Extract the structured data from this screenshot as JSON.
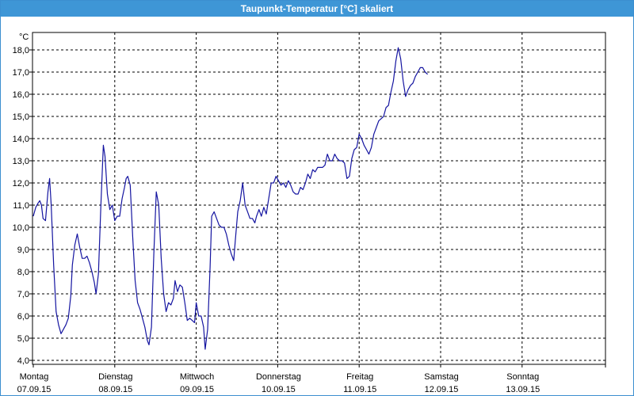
{
  "window": {
    "title": "Taupunkt-Temperatur [°C] skaliert"
  },
  "chart_data": {
    "type": "line",
    "title": "Taupunkt-Temperatur [°C] skaliert",
    "ylabel": "°C",
    "xlabel": "",
    "ylim": [
      3.9,
      18.6
    ],
    "xlim": [
      0,
      7
    ],
    "grid": true,
    "y_ticks": [
      "4,0",
      "5,0",
      "6,0",
      "7,0",
      "8,0",
      "9,0",
      "10,0",
      "11,0",
      "12,0",
      "13,0",
      "14,0",
      "15,0",
      "16,0",
      "17,0",
      "18,0"
    ],
    "y_tick_values": [
      4,
      5,
      6,
      7,
      8,
      9,
      10,
      11,
      12,
      13,
      14,
      15,
      16,
      17,
      18
    ],
    "x_ticks": [
      {
        "day": "Montag",
        "date": "07.09.15"
      },
      {
        "day": "Dienstag",
        "date": "08.09.15"
      },
      {
        "day": "Mittwoch",
        "date": "09.09.15"
      },
      {
        "day": "Donnerstag",
        "date": "10.09.15"
      },
      {
        "day": "Freitag",
        "date": "11.09.15"
      },
      {
        "day": "Samstag",
        "date": "12.09.15"
      },
      {
        "day": "Sonntag",
        "date": "13.09.15"
      }
    ],
    "colors": {
      "line": "#1414a0",
      "grid": "#000000",
      "title_bar": "#3e96d6"
    },
    "series": [
      {
        "points": [
          [
            0.0,
            10.5
          ],
          [
            0.03,
            10.9
          ],
          [
            0.06,
            11.1
          ],
          [
            0.08,
            11.2
          ],
          [
            0.1,
            11.0
          ],
          [
            0.12,
            10.4
          ],
          [
            0.15,
            10.3
          ],
          [
            0.18,
            11.6
          ],
          [
            0.2,
            12.2
          ],
          [
            0.22,
            11.0
          ],
          [
            0.25,
            8.3
          ],
          [
            0.28,
            6.2
          ],
          [
            0.31,
            5.6
          ],
          [
            0.34,
            5.2
          ],
          [
            0.37,
            5.4
          ],
          [
            0.4,
            5.6
          ],
          [
            0.43,
            5.9
          ],
          [
            0.46,
            6.9
          ],
          [
            0.48,
            8.3
          ],
          [
            0.51,
            9.2
          ],
          [
            0.54,
            9.7
          ],
          [
            0.57,
            9.1
          ],
          [
            0.6,
            8.6
          ],
          [
            0.63,
            8.6
          ],
          [
            0.66,
            8.7
          ],
          [
            0.69,
            8.4
          ],
          [
            0.72,
            8.0
          ],
          [
            0.75,
            7.5
          ],
          [
            0.77,
            7.0
          ],
          [
            0.8,
            7.9
          ],
          [
            0.83,
            11.0
          ],
          [
            0.86,
            13.7
          ],
          [
            0.88,
            13.2
          ],
          [
            0.91,
            11.5
          ],
          [
            0.94,
            10.8
          ],
          [
            0.97,
            11.0
          ],
          [
            1.0,
            10.3
          ],
          [
            1.03,
            10.5
          ],
          [
            1.06,
            10.5
          ],
          [
            1.09,
            11.3
          ],
          [
            1.12,
            11.8
          ],
          [
            1.14,
            12.2
          ],
          [
            1.16,
            12.3
          ],
          [
            1.19,
            11.9
          ],
          [
            1.22,
            9.6
          ],
          [
            1.25,
            7.6
          ],
          [
            1.28,
            6.6
          ],
          [
            1.31,
            6.3
          ],
          [
            1.34,
            5.9
          ],
          [
            1.37,
            5.5
          ],
          [
            1.4,
            4.9
          ],
          [
            1.42,
            4.7
          ],
          [
            1.45,
            5.5
          ],
          [
            1.48,
            8.8
          ],
          [
            1.51,
            11.6
          ],
          [
            1.54,
            11.0
          ],
          [
            1.57,
            8.6
          ],
          [
            1.6,
            7.0
          ],
          [
            1.63,
            6.2
          ],
          [
            1.66,
            6.6
          ],
          [
            1.69,
            6.5
          ],
          [
            1.72,
            6.8
          ],
          [
            1.74,
            7.6
          ],
          [
            1.77,
            7.1
          ],
          [
            1.8,
            7.4
          ],
          [
            1.83,
            7.3
          ],
          [
            1.86,
            6.6
          ],
          [
            1.89,
            5.8
          ],
          [
            1.92,
            5.9
          ],
          [
            1.95,
            5.8
          ],
          [
            1.98,
            5.7
          ],
          [
            2.0,
            6.6
          ],
          [
            2.03,
            6.0
          ],
          [
            2.06,
            6.0
          ],
          [
            2.09,
            5.5
          ],
          [
            2.11,
            4.5
          ],
          [
            2.14,
            5.4
          ],
          [
            2.17,
            8.2
          ],
          [
            2.19,
            10.5
          ],
          [
            2.22,
            10.7
          ],
          [
            2.25,
            10.4
          ],
          [
            2.28,
            10.1
          ],
          [
            2.31,
            10.0
          ],
          [
            2.34,
            10.0
          ],
          [
            2.37,
            9.7
          ],
          [
            2.4,
            9.2
          ],
          [
            2.43,
            8.8
          ],
          [
            2.46,
            8.5
          ],
          [
            2.48,
            9.4
          ],
          [
            2.51,
            10.7
          ],
          [
            2.54,
            11.2
          ],
          [
            2.57,
            12.0
          ],
          [
            2.6,
            11.0
          ],
          [
            2.63,
            10.7
          ],
          [
            2.66,
            10.4
          ],
          [
            2.69,
            10.4
          ],
          [
            2.72,
            10.2
          ],
          [
            2.74,
            10.5
          ],
          [
            2.77,
            10.8
          ],
          [
            2.8,
            10.5
          ],
          [
            2.83,
            10.9
          ],
          [
            2.86,
            10.6
          ],
          [
            2.89,
            11.3
          ],
          [
            2.92,
            12.0
          ],
          [
            2.95,
            12.0
          ],
          [
            2.98,
            12.3
          ],
          [
            3.01,
            12.1
          ],
          [
            3.04,
            11.9
          ],
          [
            3.07,
            12.0
          ],
          [
            3.1,
            11.8
          ],
          [
            3.13,
            12.1
          ],
          [
            3.16,
            11.9
          ],
          [
            3.19,
            11.6
          ],
          [
            3.22,
            11.5
          ],
          [
            3.25,
            11.5
          ],
          [
            3.28,
            11.8
          ],
          [
            3.31,
            11.7
          ],
          [
            3.34,
            12.0
          ],
          [
            3.37,
            12.4
          ],
          [
            3.4,
            12.2
          ],
          [
            3.43,
            12.6
          ],
          [
            3.46,
            12.5
          ],
          [
            3.49,
            12.7
          ],
          [
            3.52,
            12.7
          ],
          [
            3.55,
            12.7
          ],
          [
            3.58,
            12.8
          ],
          [
            3.61,
            13.3
          ],
          [
            3.64,
            13.0
          ],
          [
            3.67,
            13.0
          ],
          [
            3.7,
            13.3
          ],
          [
            3.73,
            13.1
          ],
          [
            3.76,
            13.0
          ],
          [
            3.79,
            13.0
          ],
          [
            3.82,
            12.9
          ],
          [
            3.85,
            12.2
          ],
          [
            3.88,
            12.3
          ],
          [
            3.91,
            13.1
          ],
          [
            3.94,
            13.5
          ],
          [
            3.97,
            13.6
          ],
          [
            4.0,
            14.2
          ],
          [
            4.03,
            14.0
          ],
          [
            4.06,
            13.7
          ],
          [
            4.09,
            13.5
          ],
          [
            4.12,
            13.3
          ],
          [
            4.15,
            13.6
          ],
          [
            4.18,
            14.2
          ],
          [
            4.21,
            14.5
          ],
          [
            4.24,
            14.8
          ],
          [
            4.27,
            14.9
          ],
          [
            4.3,
            15.0
          ],
          [
            4.33,
            15.4
          ],
          [
            4.36,
            15.5
          ],
          [
            4.39,
            16.1
          ],
          [
            4.42,
            16.6
          ],
          [
            4.45,
            17.5
          ],
          [
            4.48,
            18.1
          ],
          [
            4.51,
            17.6
          ],
          [
            4.54,
            16.6
          ],
          [
            4.57,
            15.9
          ],
          [
            4.6,
            16.2
          ],
          [
            4.63,
            16.4
          ],
          [
            4.66,
            16.5
          ],
          [
            4.69,
            16.8
          ],
          [
            4.72,
            17.0
          ],
          [
            4.75,
            17.2
          ],
          [
            4.78,
            17.2
          ],
          [
            4.81,
            17.0
          ],
          [
            4.84,
            16.9
          ]
        ]
      }
    ]
  }
}
